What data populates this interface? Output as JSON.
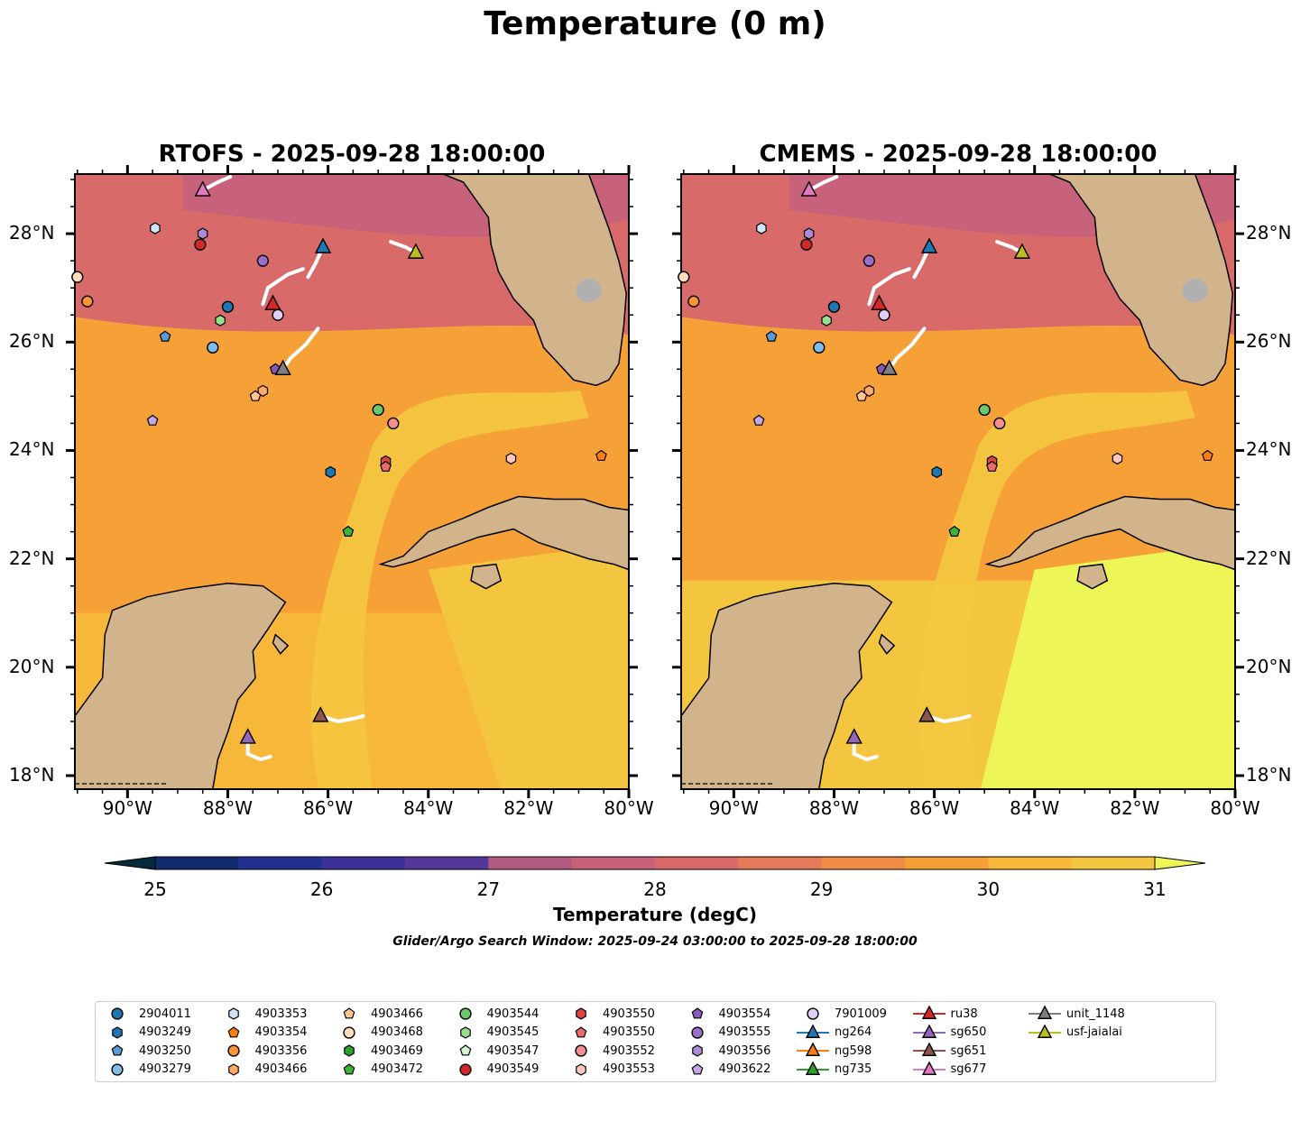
{
  "title": "Temperature (0 m)",
  "panels": [
    {
      "title": "RTOFS - 2025-09-28 18:00:00",
      "variant": "rtofs"
    },
    {
      "title": "CMEMS - 2025-09-28 18:00:00",
      "variant": "cmems"
    }
  ],
  "lat_ticks": [
    "18°N",
    "20°N",
    "22°N",
    "24°N",
    "26°N",
    "28°N"
  ],
  "lon_ticks": [
    "90°W",
    "88°W",
    "86°W",
    "84°W",
    "82°W",
    "80°W"
  ],
  "colorbar": {
    "label": "Temperature (degC)",
    "ticks": [
      "25",
      "26",
      "27",
      "28",
      "29",
      "30",
      "31"
    ],
    "colors": [
      "#062a3d",
      "#122a6e",
      "#23308f",
      "#3b3199",
      "#55379a",
      "#6c3f96",
      "#854a90",
      "#9c538a",
      "#b25a80",
      "#c8617a",
      "#d86a69",
      "#e47a57",
      "#f08c44",
      "#f5a138",
      "#f7b73a",
      "#f4c640",
      "#eef556"
    ]
  },
  "search_window": "Glider/Argo Search Window: 2025-09-24 03:00:00 to 2025-09-28 18:00:00",
  "colors": {
    "land": "#d1b48c",
    "lake": "#9cc1e8",
    "track": "#ffffff"
  },
  "legend": [
    {
      "label": "2904011",
      "marker": "circle",
      "color": "#1f77b4",
      "line": false
    },
    {
      "label": "4903249",
      "marker": "hexagon",
      "color": "#1f77b4",
      "line": false
    },
    {
      "label": "4903250",
      "marker": "pentagon",
      "color": "#5b9bd5",
      "line": false
    },
    {
      "label": "4903279",
      "marker": "circle",
      "color": "#7fbce6",
      "line": false
    },
    {
      "label": "4903353",
      "marker": "hexagon",
      "color": "#cfe4f7",
      "line": false
    },
    {
      "label": "4903354",
      "marker": "pentagon",
      "color": "#ff7f0e",
      "line": false
    },
    {
      "label": "4903356",
      "marker": "circle",
      "color": "#ff9433",
      "line": false
    },
    {
      "label": "4903466",
      "marker": "hexagon",
      "color": "#ffaa66",
      "line": false
    },
    {
      "label": "4903466",
      "marker": "pentagon",
      "color": "#ffc58f",
      "line": false
    },
    {
      "label": "4903468",
      "marker": "circle",
      "color": "#ffdcba",
      "line": false
    },
    {
      "label": "4903469",
      "marker": "hexagon",
      "color": "#2ca02c",
      "line": false
    },
    {
      "label": "4903472",
      "marker": "pentagon",
      "color": "#3cb43c",
      "line": false
    },
    {
      "label": "4903544",
      "marker": "circle",
      "color": "#6cc86c",
      "line": false
    },
    {
      "label": "4903545",
      "marker": "hexagon",
      "color": "#98df8a",
      "line": false
    },
    {
      "label": "4903547",
      "marker": "pentagon",
      "color": "#d4f5cc",
      "line": false
    },
    {
      "label": "4903549",
      "marker": "circle",
      "color": "#d62728",
      "line": false
    },
    {
      "label": "4903550",
      "marker": "hexagon",
      "color": "#e04545",
      "line": false
    },
    {
      "label": "4903550",
      "marker": "pentagon",
      "color": "#ec6a6a",
      "line": false
    },
    {
      "label": "4903552",
      "marker": "circle",
      "color": "#f28f8f",
      "line": false
    },
    {
      "label": "4903553",
      "marker": "hexagon",
      "color": "#ffc6c0",
      "line": false
    },
    {
      "label": "4903554",
      "marker": "pentagon",
      "color": "#8a5ab8",
      "line": false
    },
    {
      "label": "4903555",
      "marker": "circle",
      "color": "#9c6fcc",
      "line": false
    },
    {
      "label": "4903556",
      "marker": "hexagon",
      "color": "#b08ad8",
      "line": false
    },
    {
      "label": "4903622",
      "marker": "pentagon",
      "color": "#c5a6e4",
      "line": false
    },
    {
      "label": "7901009",
      "marker": "circle",
      "color": "#e0cdf5",
      "line": false
    },
    {
      "label": "ng264",
      "marker": "triangle",
      "color": "#1f77b4",
      "line": true
    },
    {
      "label": "ng598",
      "marker": "triangle",
      "color": "#ff7f0e",
      "line": true
    },
    {
      "label": "ng735",
      "marker": "triangle",
      "color": "#2ca02c",
      "line": true
    },
    {
      "label": "ru38",
      "marker": "triangle",
      "color": "#d62728",
      "line": true
    },
    {
      "label": "sg650",
      "marker": "triangle",
      "color": "#9467bd",
      "line": true
    },
    {
      "label": "sg651",
      "marker": "triangle",
      "color": "#8c564b",
      "line": true
    },
    {
      "label": "sg677",
      "marker": "triangle",
      "color": "#e377c2",
      "line": true
    },
    {
      "label": "unit_1148",
      "marker": "triangle",
      "color": "#7f7f7f",
      "line": true
    },
    {
      "label": "usf-jaialai",
      "marker": "triangle",
      "color": "#bcbd22",
      "line": true
    }
  ],
  "floats": [
    {
      "lon": -91.0,
      "lat": 27.2,
      "marker": "circle",
      "color": "#ffdcba"
    },
    {
      "lon": -90.8,
      "lat": 26.75,
      "marker": "circle",
      "color": "#ff9433"
    },
    {
      "lon": -89.45,
      "lat": 28.1,
      "marker": "hexagon",
      "color": "#cfe4f7"
    },
    {
      "lon": -88.5,
      "lat": 28.0,
      "marker": "hexagon",
      "color": "#b08ad8"
    },
    {
      "lon": -88.55,
      "lat": 27.8,
      "marker": "circle",
      "color": "#d62728"
    },
    {
      "lon": -87.3,
      "lat": 27.5,
      "marker": "circle",
      "color": "#9c6fcc"
    },
    {
      "lon": -88.0,
      "lat": 26.65,
      "marker": "circle",
      "color": "#1f77b4"
    },
    {
      "lon": -88.15,
      "lat": 26.4,
      "marker": "hexagon",
      "color": "#98df8a"
    },
    {
      "lon": -87.0,
      "lat": 26.5,
      "marker": "circle",
      "color": "#e0cdf5"
    },
    {
      "lon": -89.25,
      "lat": 26.1,
      "marker": "pentagon",
      "color": "#5b9bd5"
    },
    {
      "lon": -88.3,
      "lat": 25.9,
      "marker": "circle",
      "color": "#7fbce6"
    },
    {
      "lon": -87.05,
      "lat": 25.5,
      "marker": "pentagon",
      "color": "#8a5ab8"
    },
    {
      "lon": -87.3,
      "lat": 25.1,
      "marker": "hexagon",
      "color": "#ffaa66"
    },
    {
      "lon": -87.45,
      "lat": 25.0,
      "marker": "pentagon",
      "color": "#ffc58f"
    },
    {
      "lon": -89.5,
      "lat": 24.55,
      "marker": "pentagon",
      "color": "#c5a6e4"
    },
    {
      "lon": -85.0,
      "lat": 24.75,
      "marker": "circle",
      "color": "#6cc86c"
    },
    {
      "lon": -84.7,
      "lat": 24.5,
      "marker": "circle",
      "color": "#f28f8f"
    },
    {
      "lon": -84.85,
      "lat": 23.8,
      "marker": "hexagon",
      "color": "#e04545"
    },
    {
      "lon": -84.85,
      "lat": 23.7,
      "marker": "pentagon",
      "color": "#ec6a6a"
    },
    {
      "lon": -85.95,
      "lat": 23.6,
      "marker": "hexagon",
      "color": "#1f77b4"
    },
    {
      "lon": -82.35,
      "lat": 23.85,
      "marker": "hexagon",
      "color": "#ffc6c0"
    },
    {
      "lon": -80.55,
      "lat": 23.9,
      "marker": "pentagon",
      "color": "#ff7f0e"
    },
    {
      "lon": -85.6,
      "lat": 22.5,
      "marker": "pentagon",
      "color": "#3cb43c"
    }
  ],
  "gliders": [
    {
      "lon": -88.5,
      "lat": 28.8,
      "color": "#e377c2",
      "track": [
        [
          -88.5,
          28.8
        ],
        [
          -88.2,
          28.95
        ],
        [
          -87.95,
          29.05
        ]
      ]
    },
    {
      "lon": -86.1,
      "lat": 27.75,
      "color": "#1f77b4",
      "track": [
        [
          -86.1,
          27.75
        ],
        [
          -86.25,
          27.45
        ],
        [
          -86.4,
          27.2
        ]
      ]
    },
    {
      "lon": -84.25,
      "lat": 27.65,
      "color": "#bcbd22",
      "track": [
        [
          -84.25,
          27.65
        ],
        [
          -84.45,
          27.75
        ],
        [
          -84.75,
          27.85
        ]
      ]
    },
    {
      "lon": -87.1,
      "lat": 26.7,
      "color": "#d62728",
      "track": [
        [
          -87.3,
          26.7
        ],
        [
          -87.2,
          27.0
        ],
        [
          -86.8,
          27.25
        ],
        [
          -86.5,
          27.35
        ]
      ]
    },
    {
      "lon": -86.9,
      "lat": 25.5,
      "color": "#7f7f7f",
      "track": [
        [
          -86.9,
          25.5
        ],
        [
          -86.75,
          25.7
        ],
        [
          -86.45,
          25.95
        ],
        [
          -86.2,
          26.25
        ]
      ]
    },
    {
      "lon": -86.15,
      "lat": 19.1,
      "color": "#8c564b",
      "track": [
        [
          -86.15,
          19.1
        ],
        [
          -85.8,
          19.0
        ],
        [
          -85.5,
          19.05
        ],
        [
          -85.3,
          19.1
        ]
      ]
    },
    {
      "lon": -87.6,
      "lat": 18.7,
      "color": "#9467bd",
      "track": [
        [
          -87.6,
          18.7
        ],
        [
          -87.6,
          18.4
        ],
        [
          -87.35,
          18.3
        ],
        [
          -87.15,
          18.35
        ]
      ]
    }
  ]
}
